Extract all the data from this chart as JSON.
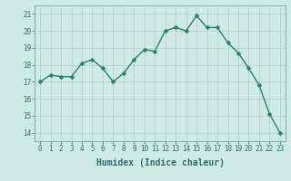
{
  "x": [
    0,
    1,
    2,
    3,
    4,
    5,
    6,
    7,
    8,
    9,
    10,
    11,
    12,
    13,
    14,
    15,
    16,
    17,
    18,
    19,
    20,
    21,
    22,
    23
  ],
  "y": [
    17.0,
    17.4,
    17.3,
    17.3,
    18.1,
    18.3,
    17.8,
    17.0,
    17.5,
    18.3,
    18.9,
    18.8,
    20.0,
    20.2,
    20.0,
    20.9,
    20.2,
    20.2,
    19.3,
    18.7,
    17.8,
    16.8,
    15.1,
    14.0
  ],
  "line_color": "#2e7d6e",
  "marker_color": "#2e7d6e",
  "bg_color": "#cdeae4",
  "grid_major_color": "#b0cdc9",
  "grid_minor_color": "#c5dcd8",
  "xlabel": "Humidex (Indice chaleur)",
  "ylim": [
    13.5,
    21.5
  ],
  "xlim": [
    -0.5,
    23.5
  ],
  "yticks": [
    14,
    15,
    16,
    17,
    18,
    19,
    20,
    21
  ],
  "xticks": [
    0,
    1,
    2,
    3,
    4,
    5,
    6,
    7,
    8,
    9,
    10,
    11,
    12,
    13,
    14,
    15,
    16,
    17,
    18,
    19,
    20,
    21,
    22,
    23
  ],
  "line_width": 1.0,
  "marker_size": 2.5,
  "tick_fontsize": 5.5,
  "xlabel_fontsize": 7.0
}
